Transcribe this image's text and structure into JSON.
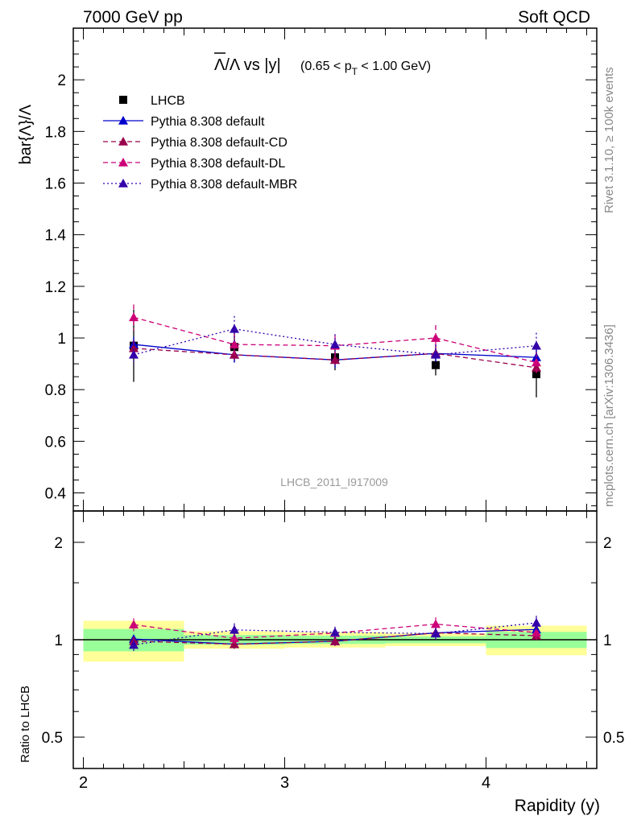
{
  "header": {
    "left": "7000 GeV pp",
    "right": "Soft QCD"
  },
  "side_labels": {
    "rivet": "Rivet 3.1.10, ≥ 100k events",
    "mcplots": "mcplots.cern.ch [arXiv:1306.3436]"
  },
  "chart_data": {
    "type": "scatter",
    "title_main": "Λ/Λ vs |y|",
    "title_range_prefix": "(0.65 < p",
    "title_range_sub": "T",
    "title_range_suffix": " < 1.00 GeV)",
    "analysis_id": "LHCB_2011_I917009",
    "xlabel": "Rapidity (y)",
    "ylabel": "bar{Λ}/Λ",
    "ratio_ylabel": "Ratio to LHCB",
    "xlim": [
      1.95,
      4.55
    ],
    "ylim": [
      0.33,
      2.2
    ],
    "ratio_ylim": [
      0.4,
      2.5
    ],
    "ratio_log_scale": true,
    "x_ticks": [
      "2",
      "3",
      "4"
    ],
    "y_ticks": [
      "0.4",
      "0.6",
      "0.8",
      "1",
      "1.2",
      "1.4",
      "1.6",
      "1.8",
      "2"
    ],
    "ratio_ticks": [
      "0.5",
      "1",
      "2"
    ],
    "legend_position": "top-left",
    "x": [
      2.25,
      2.75,
      3.25,
      3.75,
      4.25
    ],
    "bins": [
      [
        2.0,
        2.5
      ],
      [
        2.5,
        3.0
      ],
      [
        3.0,
        3.5
      ],
      [
        3.5,
        4.0
      ],
      [
        4.0,
        4.5
      ]
    ],
    "series": [
      {
        "name": "LHCB",
        "color": "#000000",
        "style": "data",
        "values": [
          0.97,
          0.965,
          0.925,
          0.895,
          0.86
        ],
        "err_stat": [
          0.02,
          0.02,
          0.015,
          0.015,
          0.015
        ],
        "err_total": [
          0.14,
          0.06,
          0.05,
          0.04,
          0.09
        ]
      },
      {
        "name": "Pythia 8.308 default",
        "color": "#0000cc",
        "style": "solid",
        "values": [
          0.975,
          0.935,
          0.915,
          0.94,
          0.925
        ],
        "errors": [
          0.03,
          0.03,
          0.03,
          0.03,
          0.03
        ]
      },
      {
        "name": "Pythia 8.308 default-CD",
        "color": "#99004d",
        "style": "dashed",
        "values": [
          0.96,
          0.935,
          0.915,
          0.94,
          0.885
        ],
        "errors": [
          0.03,
          0.03,
          0.03,
          0.03,
          0.03
        ]
      },
      {
        "name": "Pythia 8.308 default-DL",
        "color": "#cc0077",
        "style": "dashed",
        "values": [
          1.08,
          0.975,
          0.97,
          1.0,
          0.905
        ],
        "errors": [
          0.05,
          0.04,
          0.04,
          0.05,
          0.04
        ]
      },
      {
        "name": "Pythia 8.308 default-MBR",
        "color": "#3300aa",
        "style": "dotted",
        "values": [
          0.935,
          1.035,
          0.975,
          0.935,
          0.97
        ],
        "errors": [
          0.04,
          0.05,
          0.04,
          0.04,
          0.05
        ]
      }
    ]
  }
}
